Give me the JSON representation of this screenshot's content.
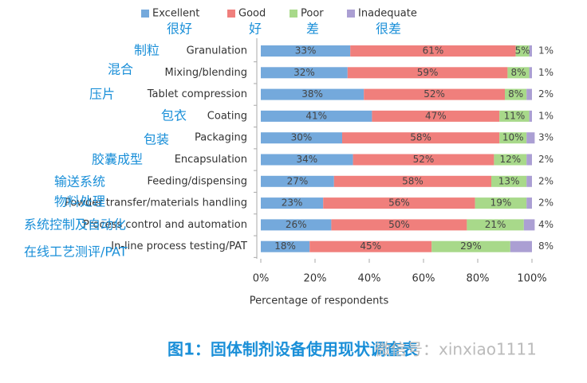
{
  "chart_data": {
    "type": "bar",
    "orientation": "horizontal",
    "stacked": true,
    "categories": [
      "Granulation",
      "Mixing/blending",
      "Tablet compression",
      "Coating",
      "Packaging",
      "Encapsulation",
      "Feeding/dispensing",
      "Powder transfer/materials handling",
      "Process control and automation",
      "In-line process testing/PAT"
    ],
    "category_annotations": [
      "制粒",
      "混合",
      "压片",
      "包衣",
      "包装",
      "胶囊成型",
      "输送系统",
      "物料处理",
      "系统控制及自动化",
      "在线工艺测评/PAT"
    ],
    "series": [
      {
        "name": "Excellent",
        "name_annotation": "很好",
        "color": "#74a9dc",
        "values": [
          33,
          32,
          38,
          41,
          30,
          34,
          27,
          23,
          26,
          18
        ],
        "value_labels": [
          "33%",
          "32%",
          "38%",
          "41%",
          "30%",
          "34%",
          "27%",
          "23%",
          "26%",
          "18%"
        ]
      },
      {
        "name": "Good",
        "name_annotation": "好",
        "color": "#f07f7c",
        "values": [
          61,
          59,
          52,
          47,
          58,
          52,
          58,
          56,
          50,
          45
        ],
        "value_labels": [
          "61%",
          "59%",
          "52%",
          "47%",
          "58%",
          "52%",
          "58%",
          "56%",
          "50%",
          "45%"
        ]
      },
      {
        "name": "Poor",
        "name_annotation": "差",
        "color": "#a8d98a",
        "values": [
          5,
          8,
          8,
          11,
          10,
          12,
          13,
          19,
          21,
          29
        ],
        "value_labels": [
          "5%",
          "8%",
          "8%",
          "11%",
          "10%",
          "12%",
          "13%",
          "19%",
          "21%",
          "29%"
        ]
      },
      {
        "name": "Inadequate",
        "name_annotation": "很差",
        "color": "#ab9fd3",
        "values": [
          1,
          1,
          2,
          1,
          3,
          2,
          2,
          2,
          4,
          8
        ],
        "value_labels": [
          "1%",
          "1%",
          "2%",
          "1%",
          "3%",
          "2%",
          "2%",
          "2%",
          "4%",
          "8%"
        ]
      }
    ],
    "xlim": [
      0,
      100
    ],
    "xticks": [
      {
        "value": 0,
        "label": "0%"
      },
      {
        "value": 20,
        "label": "20%"
      },
      {
        "value": 40,
        "label": "40%"
      },
      {
        "value": 60,
        "label": "60%"
      },
      {
        "value": 80,
        "label": "80%"
      },
      {
        "value": 100,
        "label": "100%"
      }
    ],
    "xlabel": "Percentage of respondents",
    "legend": "top"
  },
  "caption": "图1：固体制剂设备使用现状调查表",
  "watermark": "微信号：xinxiao1111"
}
